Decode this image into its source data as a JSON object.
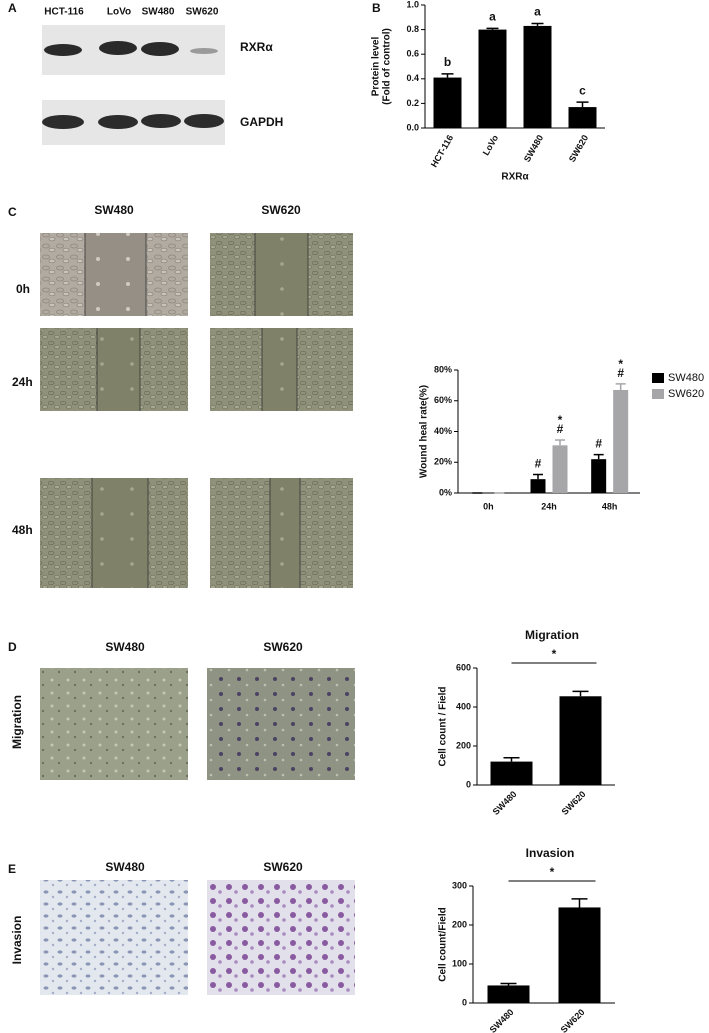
{
  "figure": {
    "panel_labels": [
      "A",
      "B",
      "C",
      "D",
      "E"
    ],
    "blot": {
      "lanes": [
        "HCT-116",
        "LoVo",
        "SW480",
        "SW620"
      ],
      "bands": [
        "RXRα",
        "GAPDH"
      ]
    },
    "wound": {
      "columns": [
        "SW480",
        "SW620"
      ],
      "rows": [
        "0h",
        "24h",
        "48h"
      ]
    },
    "migration": {
      "columns": [
        "SW480",
        "SW620"
      ],
      "row_label": "Migration"
    },
    "invasion": {
      "columns": [
        "SW480",
        "SW620"
      ],
      "row_label": "Invasion"
    }
  },
  "chart_data": [
    {
      "type": "bar",
      "categories": [
        "HCT-116",
        "LoVo",
        "SW480",
        "SW620"
      ],
      "values": [
        0.41,
        0.8,
        0.83,
        0.17
      ],
      "errors": [
        0.03,
        0.01,
        0.02,
        0.04
      ],
      "annotations": [
        "b",
        "a",
        "a",
        "c"
      ],
      "color": "#000000",
      "xlabel": "RXRα",
      "ylabel": [
        "Protein level",
        "(Fold of control)"
      ],
      "ylim": [
        0,
        1
      ],
      "yticks": [
        {
          "value": 0,
          "label": "0.0"
        },
        0.2,
        0.4,
        0.6,
        0.8,
        {
          "value": 1,
          "label": "1.0"
        }
      ]
    },
    {
      "type": "bar",
      "categories": [
        "0h",
        "24h",
        "48h"
      ],
      "series": [
        {
          "name": "SW480",
          "color": "#000000",
          "values": [
            0,
            9,
            22
          ],
          "errors": [
            0,
            3,
            3
          ],
          "annotations": [
            [],
            [
              "#"
            ],
            [
              "#"
            ]
          ]
        },
        {
          "name": "SW620",
          "color": "#a6a6a8",
          "values": [
            0,
            31,
            67
          ],
          "errors": [
            0,
            3.5,
            4
          ],
          "annotations": [
            [],
            [
              "*",
              "#"
            ],
            [
              "*",
              "#"
            ]
          ]
        }
      ],
      "ylabel": "Wound heal rate(%)",
      "legend": "right",
      "ylim": [
        0,
        80
      ],
      "yticks": [
        {
          "value": 0,
          "label": "0%"
        },
        {
          "value": 20,
          "label": "20%"
        },
        {
          "value": 40,
          "label": "40%"
        },
        {
          "value": 60,
          "label": "60%"
        },
        {
          "value": 80,
          "label": "80%"
        }
      ]
    },
    {
      "type": "bar",
      "title": "Migration",
      "categories": [
        "SW480",
        "SW620"
      ],
      "values": [
        120,
        455
      ],
      "errors": [
        20,
        25
      ],
      "significance": "*",
      "color": "#000000",
      "ylabel": "Cell count / Field",
      "ylim": [
        0,
        600
      ],
      "yticks": [
        0,
        200,
        400,
        600
      ]
    },
    {
      "type": "bar",
      "title": "Invasion",
      "categories": [
        "SW480",
        "SW620"
      ],
      "values": [
        45,
        245
      ],
      "errors": [
        5,
        22
      ],
      "significance": "*",
      "color": "#000000",
      "ylabel": "Cell count/Field",
      "ylim": [
        0,
        300
      ],
      "yticks": [
        0,
        100,
        200,
        300
      ]
    }
  ]
}
